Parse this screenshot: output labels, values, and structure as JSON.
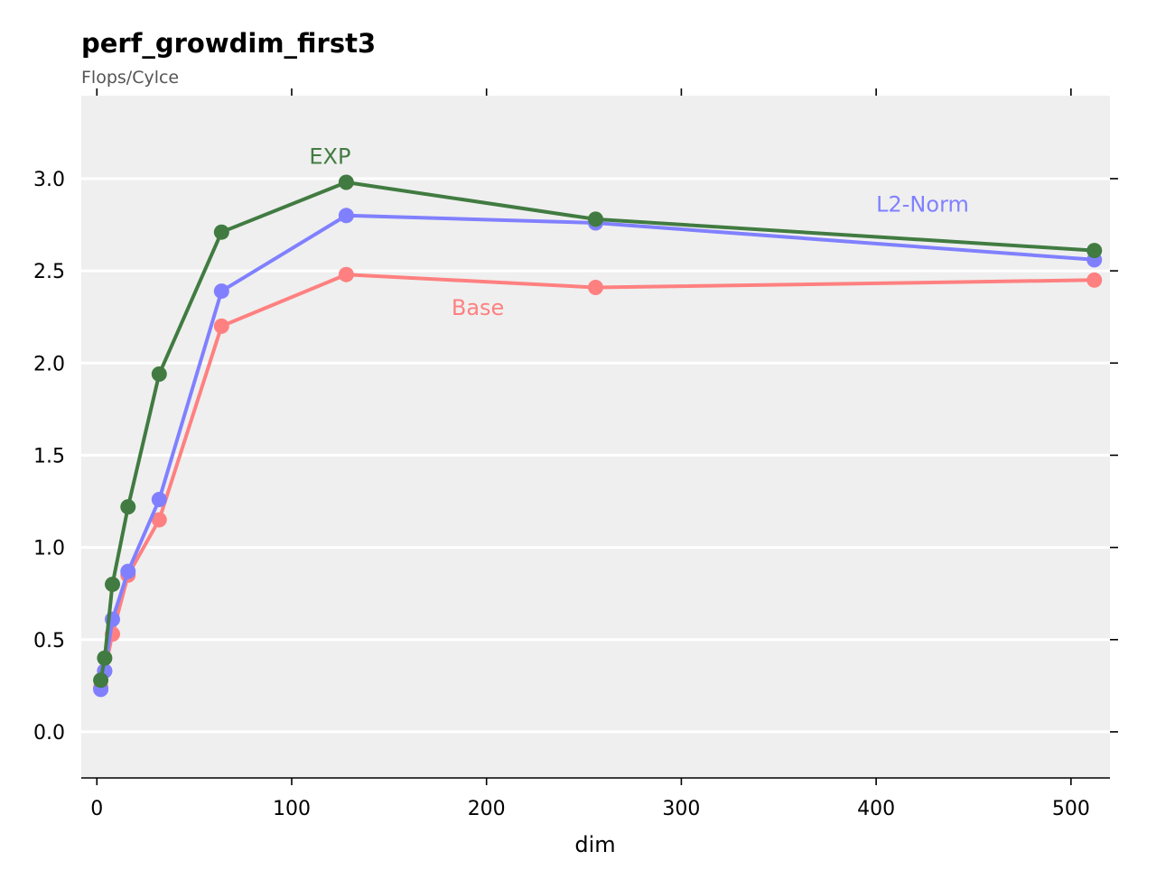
{
  "chart_data": {
    "type": "line",
    "title": "perf_growdim_first3",
    "subtitle": "Flops/Cylce",
    "xlabel": "dim",
    "ylabel": "",
    "xlim": [
      -8,
      520
    ],
    "ylim": [
      -0.25,
      3.45
    ],
    "xticks": [
      0,
      100,
      200,
      300,
      400,
      500
    ],
    "yticks": [
      0.0,
      0.5,
      1.0,
      1.5,
      2.0,
      2.5,
      3.0
    ],
    "xtick_labels": [
      "0",
      "100",
      "200",
      "300",
      "400",
      "500"
    ],
    "ytick_labels": [
      "0.0",
      "0.5",
      "1.0",
      "1.5",
      "2.0",
      "2.5",
      "3.0"
    ],
    "grid": "horizontal",
    "legend": "inline labels",
    "background": "#efefef",
    "series": [
      {
        "name": "Base",
        "color": "#ff8080",
        "x": [
          2,
          4,
          8,
          16,
          32,
          64,
          128,
          256,
          512
        ],
        "y": [
          0.24,
          0.33,
          0.53,
          0.85,
          1.15,
          2.2,
          2.48,
          2.41,
          2.45
        ],
        "label_anchor": [
          182,
          2.26
        ]
      },
      {
        "name": "L2-Norm",
        "color": "#8080ff",
        "x": [
          2,
          4,
          8,
          16,
          32,
          64,
          128,
          256,
          512
        ],
        "y": [
          0.23,
          0.33,
          0.61,
          0.87,
          1.26,
          2.39,
          2.8,
          2.76,
          2.56
        ],
        "label_anchor": [
          400,
          2.82
        ]
      },
      {
        "name": "EXP",
        "color": "#417b41",
        "x": [
          2,
          4,
          8,
          16,
          32,
          64,
          128,
          256,
          512
        ],
        "y": [
          0.28,
          0.4,
          0.8,
          1.22,
          1.94,
          2.71,
          2.98,
          2.78,
          2.61
        ],
        "label_anchor": [
          109,
          3.08
        ]
      }
    ]
  }
}
